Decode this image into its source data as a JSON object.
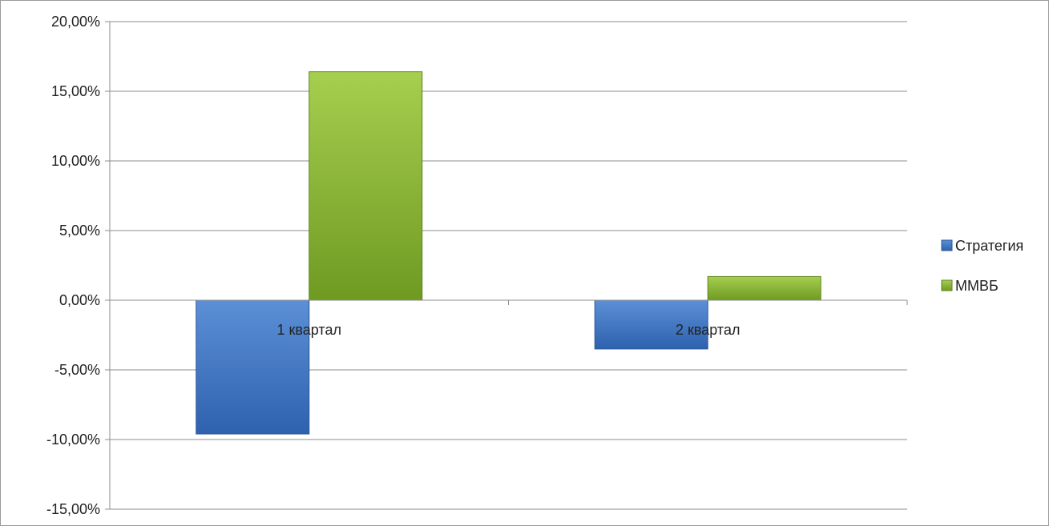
{
  "chart_data": {
    "type": "bar",
    "categories": [
      "1 квартал",
      "2 квартал"
    ],
    "series": [
      {
        "name": "Стратегия",
        "values": [
          -9.6,
          -3.5
        ],
        "color": "#4a7ec4"
      },
      {
        "name": "ММВБ",
        "values": [
          16.4,
          1.7
        ],
        "color": "#8db83a"
      }
    ],
    "ylim": [
      -15,
      20
    ],
    "yticks": [
      20,
      15,
      10,
      5,
      0,
      -5,
      -10,
      -15
    ],
    "ytick_labels": [
      "20,00%",
      "15,00%",
      "10,00%",
      "5,00%",
      "0,00%",
      "-5,00%",
      "-10,00%",
      "-15,00%"
    ],
    "grid": true,
    "legend_position": "right",
    "title": "",
    "xlabel": "",
    "ylabel": ""
  }
}
